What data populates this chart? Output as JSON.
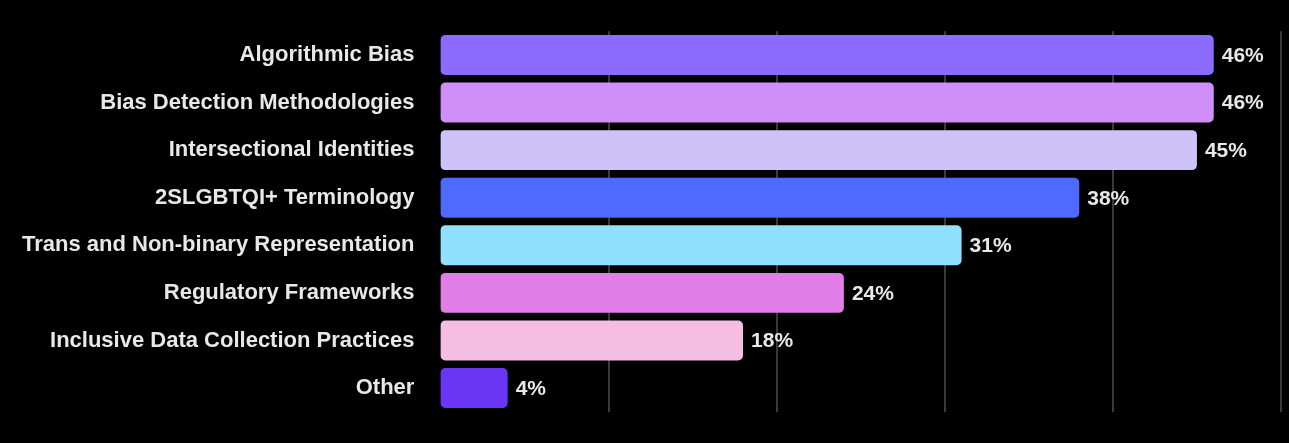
{
  "chart_data": {
    "type": "bar",
    "orientation": "horizontal",
    "categories": [
      "Algorithmic Bias",
      "Bias Detection Methodologies",
      "Intersectional Identities",
      "2SLGBTQI+ Terminology",
      "Trans and Non-binary Representation",
      "Regulatory Frameworks",
      "Inclusive Data Collection Practices",
      "Other"
    ],
    "values": [
      46,
      46,
      45,
      38,
      31,
      24,
      18,
      4
    ],
    "value_labels": [
      "46%",
      "46%",
      "45%",
      "38%",
      "31%",
      "24%",
      "18%",
      "4%"
    ],
    "colors": [
      "#8b6cff",
      "#d08ef9",
      "#cfc2f8",
      "#4f6bff",
      "#90e0ff",
      "#e17de7",
      "#f4bde1",
      "#6b35f6"
    ],
    "xlim": [
      0,
      50
    ],
    "xticks": [
      {
        "value": 10,
        "label": null
      },
      {
        "value": 20,
        "label": null
      },
      {
        "value": 30,
        "label": null
      },
      {
        "value": 40,
        "label": null
      },
      {
        "value": 50,
        "label": null
      }
    ],
    "grid": "x",
    "tick_labels": "y"
  }
}
